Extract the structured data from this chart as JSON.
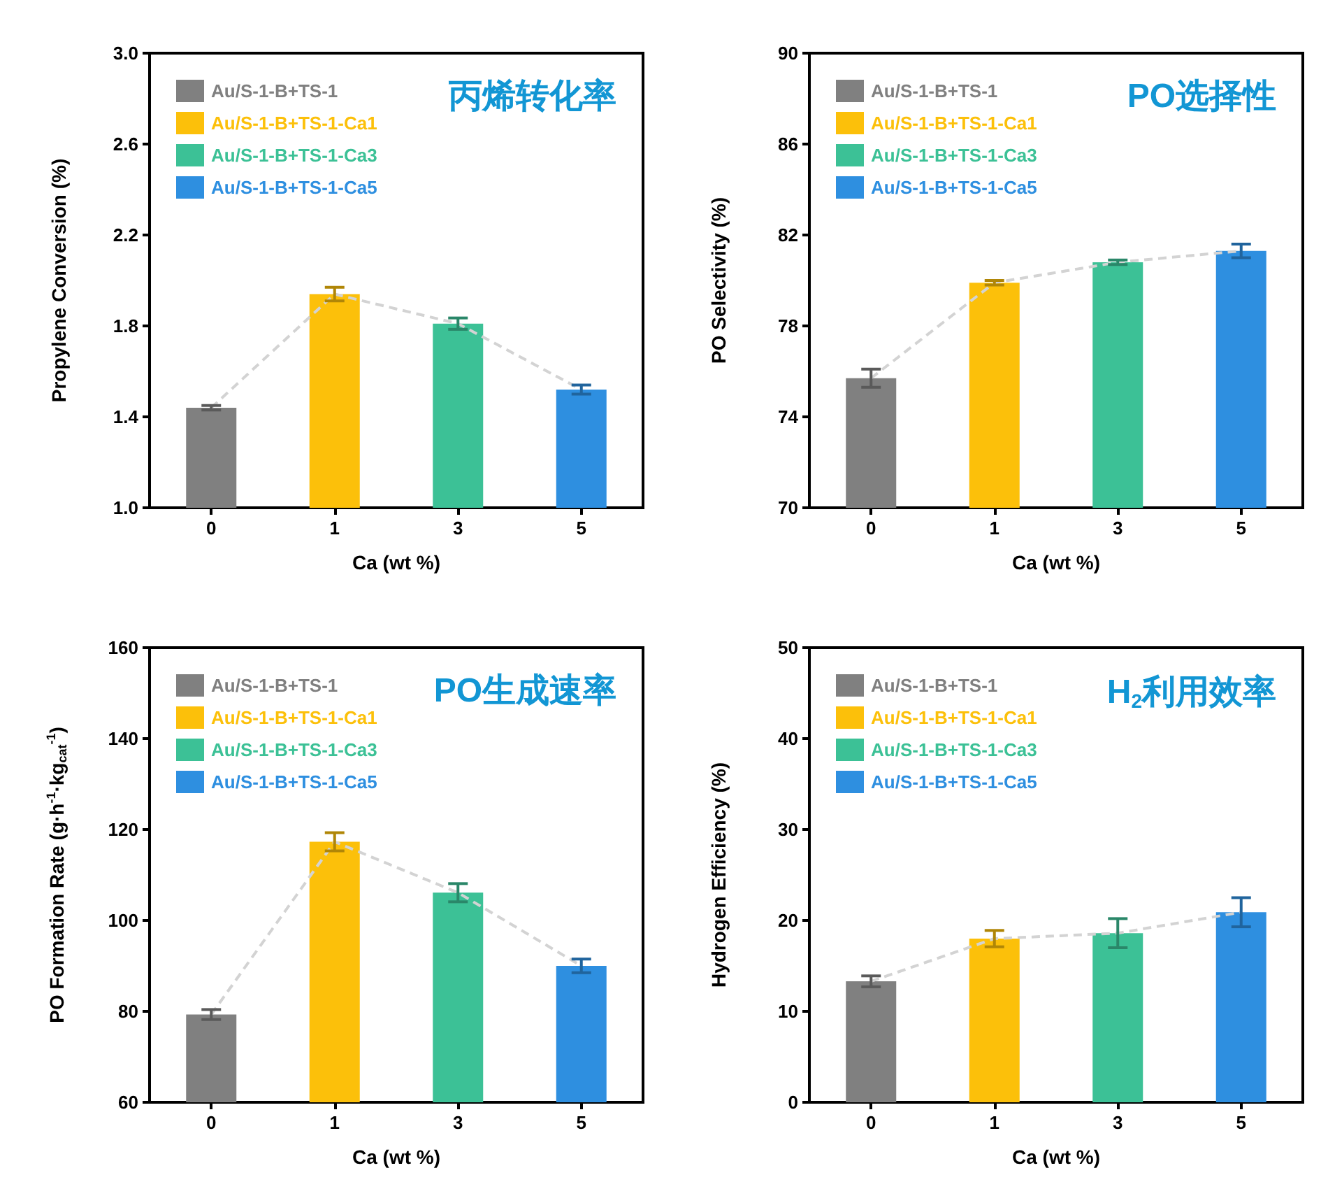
{
  "chart_data": [
    {
      "type": "bar",
      "title": "丙烯转化率",
      "xlabel": "Ca (wt %)",
      "ylabel": "Propylene Conversion (%)",
      "categories": [
        "0",
        "1",
        "3",
        "5"
      ],
      "ylim": [
        1.0,
        3.0
      ],
      "yticks": [
        {
          "value": 1.0,
          "label": "1.0"
        },
        {
          "value": 1.4,
          "label": "1.4"
        },
        {
          "value": 1.8,
          "label": "1.8"
        },
        {
          "value": 2.2,
          "label": "2.2"
        },
        {
          "value": 2.6,
          "label": "2.6"
        },
        {
          "value": 3.0,
          "label": "3.0"
        }
      ],
      "grid": false,
      "legend": "top left",
      "series": [
        {
          "name": "Au/S-1-B+TS-1",
          "color": "#808080",
          "values": [
            1.44,
            null,
            null,
            null
          ],
          "errors": [
            0.01,
            null,
            null,
            null
          ]
        },
        {
          "name": "Au/S-1-B+TS-1-Ca1",
          "color": "#fcc00a",
          "values": [
            null,
            1.94,
            null,
            null
          ],
          "errors": [
            null,
            0.03,
            null,
            null
          ]
        },
        {
          "name": "Au/S-1-B+TS-1-Ca3",
          "color": "#3cc196",
          "values": [
            null,
            null,
            1.81,
            null
          ],
          "errors": [
            null,
            null,
            0.025,
            null
          ]
        },
        {
          "name": "Au/S-1-B+TS-1-Ca5",
          "color": "#2e8fe0",
          "values": [
            null,
            null,
            null,
            1.52
          ],
          "errors": [
            null,
            null,
            null,
            0.02
          ]
        },
        {
          "type": "line",
          "color": "#d3d3d3",
          "line_style": "dashed",
          "marker": "none",
          "values": [
            1.44,
            1.94,
            1.81,
            1.52
          ]
        }
      ]
    },
    {
      "type": "bar",
      "title": "PO选择性",
      "xlabel": "Ca (wt %)",
      "ylabel": "PO Selectivity (%)",
      "categories": [
        "0",
        "1",
        "3",
        "5"
      ],
      "ylim": [
        70,
        90
      ],
      "yticks": [
        70,
        74,
        78,
        82,
        86,
        90
      ],
      "grid": false,
      "legend": "top left",
      "series": [
        {
          "name": "Au/S-1-B+TS-1",
          "color": "#808080",
          "values": [
            75.7,
            null,
            null,
            null
          ],
          "errors": [
            0.4,
            null,
            null,
            null
          ]
        },
        {
          "name": "Au/S-1-B+TS-1-Ca1",
          "color": "#fcc00a",
          "values": [
            null,
            79.9,
            null,
            null
          ],
          "errors": [
            null,
            0.1,
            null,
            null
          ]
        },
        {
          "name": "Au/S-1-B+TS-1-Ca3",
          "color": "#3cc196",
          "values": [
            null,
            null,
            80.8,
            null
          ],
          "errors": [
            null,
            null,
            0.1,
            null
          ]
        },
        {
          "name": "Au/S-1-B+TS-1-Ca5",
          "color": "#2e8fe0",
          "values": [
            null,
            null,
            null,
            81.3
          ],
          "errors": [
            null,
            null,
            null,
            0.3
          ]
        },
        {
          "type": "line",
          "color": "#d3d3d3",
          "line_style": "dashed",
          "marker": "none",
          "values": [
            75.7,
            79.9,
            80.8,
            81.3
          ]
        }
      ]
    },
    {
      "type": "bar",
      "title": "PO生成速率",
      "xlabel": "Ca (wt %)",
      "ylabel": "PO Formation Rate (g·h$^{-1}$·kg$_{cat}$$^{-1}$)",
      "categories": [
        "0",
        "1",
        "3",
        "5"
      ],
      "ylim": [
        60,
        160
      ],
      "yticks": [
        60,
        80,
        100,
        120,
        140,
        160
      ],
      "grid": false,
      "legend": "top left",
      "series": [
        {
          "name": "Au/S-1-B+TS-1",
          "color": "#808080",
          "values": [
            79.3,
            null,
            null,
            null
          ],
          "errors": [
            1.1,
            null,
            null,
            null
          ]
        },
        {
          "name": "Au/S-1-B+TS-1-Ca1",
          "color": "#fcc00a",
          "values": [
            null,
            117.3,
            null,
            null
          ],
          "errors": [
            null,
            2,
            null,
            null
          ]
        },
        {
          "name": "Au/S-1-B+TS-1-Ca3",
          "color": "#3cc196",
          "values": [
            null,
            null,
            106.1,
            null
          ],
          "errors": [
            null,
            null,
            2,
            null
          ]
        },
        {
          "name": "Au/S-1-B+TS-1-Ca5",
          "color": "#2e8fe0",
          "values": [
            null,
            null,
            null,
            90
          ],
          "errors": [
            null,
            null,
            null,
            1.5
          ]
        },
        {
          "type": "line",
          "color": "#d3d3d3",
          "line_style": "dashed",
          "marker": "none",
          "values": [
            79.3,
            117.3,
            106.1,
            90
          ]
        }
      ]
    },
    {
      "type": "bar",
      "title": "H$_{2}$利用效率",
      "xlabel": "Ca (wt %)",
      "ylabel": "Hydrogen Efficiency (%)",
      "categories": [
        "0",
        "1",
        "3",
        "5"
      ],
      "ylim": [
        0,
        50
      ],
      "yticks": [
        0,
        10,
        20,
        30,
        40,
        50
      ],
      "grid": false,
      "legend": "top left",
      "series": [
        {
          "name": "Au/S-1-B+TS-1",
          "color": "#808080",
          "values": [
            13.3,
            null,
            null,
            null
          ],
          "errors": [
            0.6,
            null,
            null,
            null
          ]
        },
        {
          "name": "Au/S-1-B+TS-1-Ca1",
          "color": "#fcc00a",
          "values": [
            null,
            18.0,
            null,
            null
          ],
          "errors": [
            null,
            0.9,
            null,
            null
          ]
        },
        {
          "name": "Au/S-1-B+TS-1-Ca3",
          "color": "#3cc196",
          "values": [
            null,
            null,
            18.6,
            null
          ],
          "errors": [
            null,
            null,
            1.6,
            null
          ]
        },
        {
          "name": "Au/S-1-B+TS-1-Ca5",
          "color": "#2e8fe0",
          "values": [
            null,
            null,
            null,
            20.9
          ],
          "errors": [
            null,
            null,
            null,
            1.6
          ]
        },
        {
          "type": "line",
          "color": "#d3d3d3",
          "line_style": "dashed",
          "marker": "none",
          "values": [
            13.3,
            18.0,
            18.6,
            20.9
          ]
        }
      ]
    }
  ]
}
